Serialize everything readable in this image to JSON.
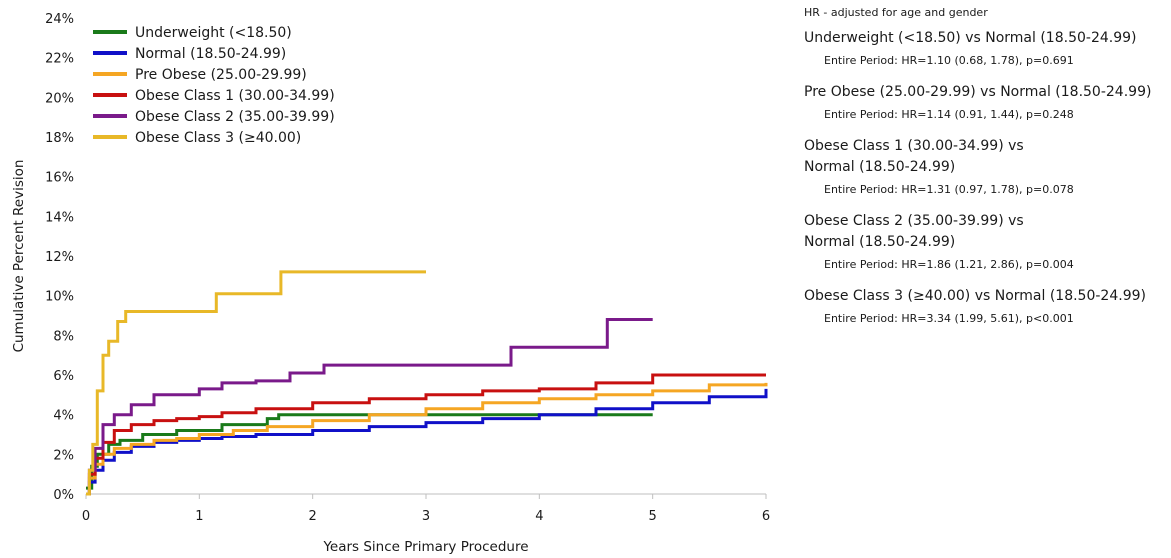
{
  "chart_data": {
    "type": "line",
    "xlabel": "Years Since Primary Procedure",
    "ylabel": "Cumulative Percent Revision",
    "xlim": [
      0,
      6
    ],
    "ylim": [
      0,
      24
    ],
    "x_ticks": [
      "0",
      "1",
      "2",
      "3",
      "4",
      "5",
      "6"
    ],
    "y_ticks": [
      "0%",
      "2%",
      "4%",
      "6%",
      "8%",
      "10%",
      "12%",
      "14%",
      "16%",
      "18%",
      "20%",
      "22%",
      "24%"
    ],
    "grid": false,
    "legend_position": "top-left",
    "step": true,
    "series": [
      {
        "name": "Underweight (<18.50)",
        "color": "#1a7a1a",
        "x": [
          0,
          0.05,
          0.1,
          0.2,
          0.3,
          0.5,
          0.8,
          1.2,
          1.6,
          1.7,
          2.2,
          3.5,
          5.0
        ],
        "y": [
          0.3,
          1.4,
          2.0,
          2.5,
          2.7,
          3.0,
          3.2,
          3.5,
          3.8,
          4.0,
          4.0,
          4.0,
          4.0
        ]
      },
      {
        "name": "Normal (18.50-24.99)",
        "color": "#1010c8",
        "x": [
          0,
          0.03,
          0.08,
          0.15,
          0.25,
          0.4,
          0.6,
          0.8,
          1.0,
          1.2,
          1.5,
          2.0,
          2.5,
          3.0,
          3.5,
          4.0,
          4.5,
          5.0,
          5.5,
          6.0
        ],
        "y": [
          0,
          0.6,
          1.2,
          1.7,
          2.1,
          2.4,
          2.6,
          2.7,
          2.8,
          2.9,
          3.0,
          3.2,
          3.4,
          3.6,
          3.8,
          4.0,
          4.3,
          4.6,
          4.9,
          5.3
        ]
      },
      {
        "name": "Pre Obese (25.00-29.99)",
        "color": "#f5a623",
        "x": [
          0,
          0.03,
          0.08,
          0.15,
          0.25,
          0.4,
          0.6,
          0.8,
          1.0,
          1.3,
          1.6,
          2.0,
          2.5,
          3.0,
          3.5,
          4.0,
          4.5,
          5.0,
          5.5,
          6.0
        ],
        "y": [
          0,
          0.8,
          1.5,
          2.0,
          2.3,
          2.5,
          2.7,
          2.8,
          3.0,
          3.2,
          3.4,
          3.7,
          4.0,
          4.3,
          4.6,
          4.8,
          5.0,
          5.2,
          5.5,
          5.6
        ]
      },
      {
        "name": "Obese Class 1 (30.00-34.99)",
        "color": "#c81010",
        "x": [
          0,
          0.03,
          0.08,
          0.15,
          0.25,
          0.4,
          0.6,
          0.8,
          1.0,
          1.2,
          1.5,
          2.0,
          2.5,
          3.0,
          3.5,
          4.0,
          4.5,
          5.0,
          6.0
        ],
        "y": [
          0,
          1.0,
          1.8,
          2.6,
          3.2,
          3.5,
          3.7,
          3.8,
          3.9,
          4.1,
          4.3,
          4.6,
          4.8,
          5.0,
          5.2,
          5.3,
          5.6,
          6.0,
          6.0
        ]
      },
      {
        "name": "Obese Class 2 (35.00-39.99)",
        "color": "#7a1a8a",
        "x": [
          0,
          0.03,
          0.08,
          0.15,
          0.25,
          0.4,
          0.6,
          1.0,
          1.2,
          1.5,
          1.8,
          2.1,
          2.5,
          3.0,
          3.5,
          3.75,
          4.2,
          4.6,
          5.0
        ],
        "y": [
          0,
          1.2,
          2.3,
          3.5,
          4.0,
          4.5,
          5.0,
          5.3,
          5.6,
          5.7,
          6.1,
          6.5,
          6.5,
          6.5,
          6.5,
          7.4,
          7.4,
          8.8,
          8.8
        ]
      },
      {
        "name": "Obese Class 3 (≥40.00)",
        "color": "#e8b828",
        "x": [
          0,
          0.03,
          0.06,
          0.1,
          0.15,
          0.2,
          0.28,
          0.35,
          0.6,
          1.15,
          1.4,
          1.72,
          2.2,
          3.0
        ],
        "y": [
          0,
          1.2,
          2.5,
          5.2,
          7.0,
          7.7,
          8.7,
          9.2,
          9.2,
          10.1,
          10.1,
          11.2,
          11.2,
          11.2
        ]
      }
    ]
  },
  "hr_panel": {
    "heading": "HR - adjusted for age and gender",
    "comparisons": [
      {
        "title": "Underweight (<18.50) vs Normal (18.50-24.99)",
        "detail": "Entire Period: HR=1.10 (0.68, 1.78), p=0.691"
      },
      {
        "title": "Pre Obese (25.00-29.99) vs Normal (18.50-24.99)",
        "detail": "Entire Period: HR=1.14 (0.91, 1.44), p=0.248"
      },
      {
        "title": "Obese Class 1 (30.00-34.99) vs Normal (18.50-24.99)",
        "detail": "Entire Period: HR=1.31 (0.97, 1.78), p=0.078"
      },
      {
        "title": "Obese Class 2 (35.00-39.99) vs Normal (18.50-24.99)",
        "detail": "Entire Period: HR=1.86 (1.21, 2.86), p=0.004"
      },
      {
        "title": "Obese Class 3 (≥40.00) vs Normal (18.50-24.99)",
        "detail": "Entire Period: HR=3.34 (1.99, 5.61), p<0.001"
      }
    ]
  }
}
